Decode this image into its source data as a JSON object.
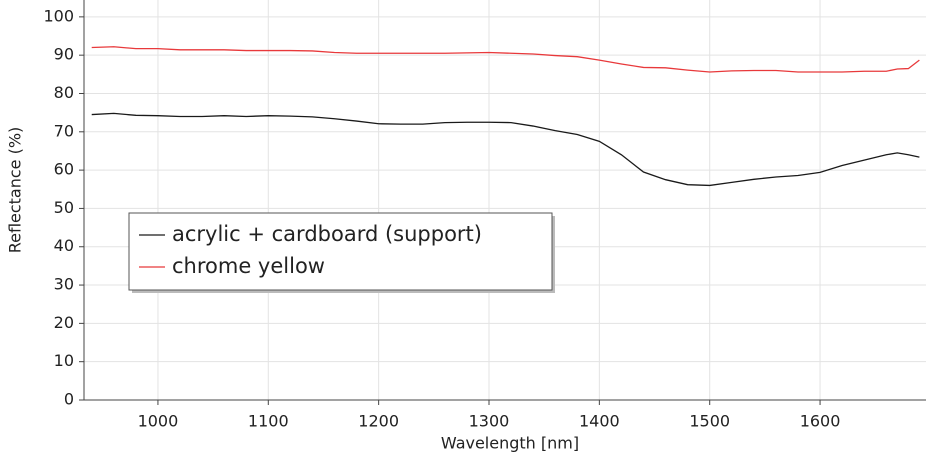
{
  "chart_data": {
    "type": "line",
    "x_label": "Wavelength [nm]",
    "y_label": "Reflectance (%)",
    "x": [
      940,
      960,
      980,
      1000,
      1020,
      1040,
      1060,
      1080,
      1100,
      1120,
      1140,
      1160,
      1180,
      1200,
      1220,
      1240,
      1260,
      1280,
      1300,
      1320,
      1340,
      1360,
      1380,
      1400,
      1420,
      1440,
      1460,
      1480,
      1500,
      1520,
      1540,
      1560,
      1580,
      1600,
      1620,
      1640,
      1660,
      1670,
      1680,
      1690
    ],
    "series": [
      {
        "name": "acrylic + cardboard (support)",
        "color": "#1a1a1a",
        "values": [
          74.5,
          74.8,
          74.3,
          74.2,
          74,
          74,
          74.2,
          74,
          74.2,
          74.1,
          73.9,
          73.4,
          72.8,
          72.1,
          72,
          72,
          72.4,
          72.5,
          72.5,
          72.4,
          71.5,
          70.3,
          69.3,
          67.5,
          64,
          59.5,
          57.5,
          56.2,
          56,
          56.8,
          57.6,
          58.2,
          58.6,
          59.4,
          61.2,
          62.6,
          64,
          64.5,
          64,
          63.4
        ]
      },
      {
        "name": "chrome yellow",
        "color": "#e8393b",
        "values": [
          92,
          92.2,
          91.7,
          91.7,
          91.4,
          91.4,
          91.4,
          91.2,
          91.2,
          91.2,
          91.1,
          90.7,
          90.5,
          90.5,
          90.5,
          90.5,
          90.5,
          90.6,
          90.7,
          90.5,
          90.3,
          89.9,
          89.6,
          88.7,
          87.7,
          86.8,
          86.7,
          86.1,
          85.6,
          85.9,
          86,
          86,
          85.6,
          85.6,
          85.6,
          85.8,
          85.8,
          86.4,
          86.5,
          88.7
        ]
      }
    ],
    "xlim": [
      933,
      1696
    ],
    "ylim": [
      0,
      104.4
    ],
    "xticks": [
      1000,
      1100,
      1200,
      1300,
      1400,
      1500,
      1600
    ],
    "yticks": [
      0,
      10,
      20,
      30,
      40,
      50,
      60,
      70,
      80,
      90,
      100
    ],
    "grid": true,
    "legend": "left"
  }
}
